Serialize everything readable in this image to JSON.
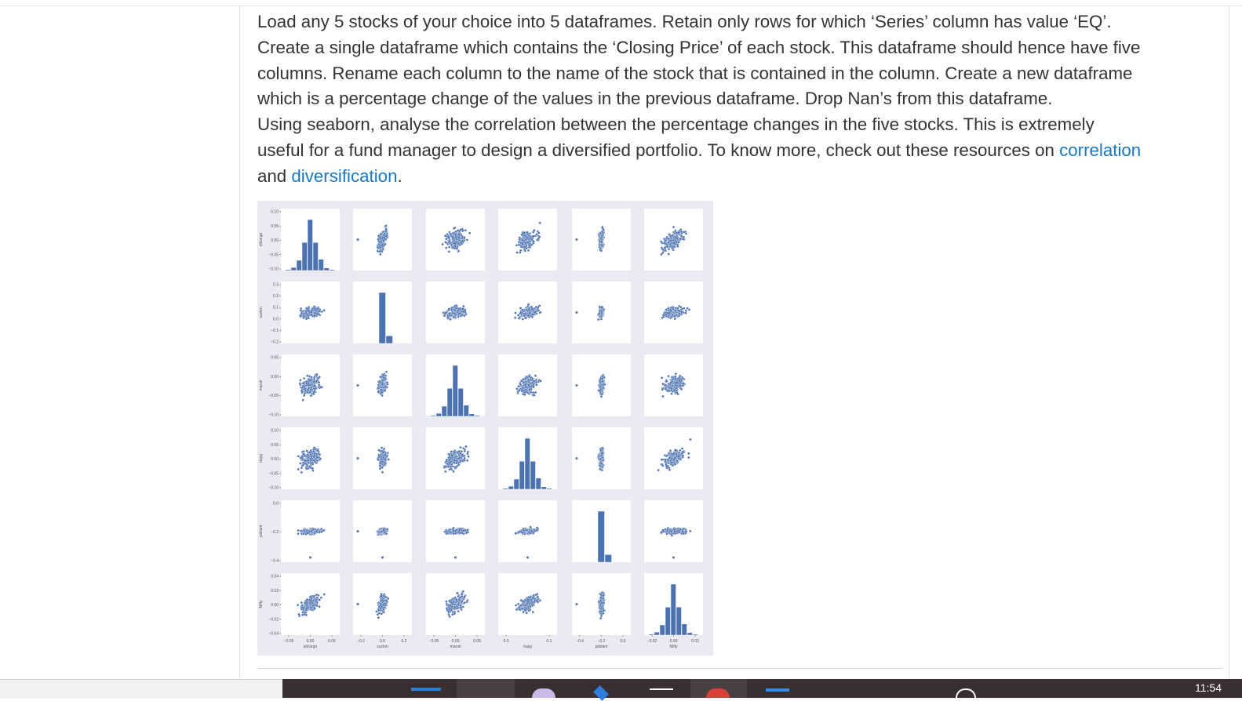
{
  "paragraph": {
    "line1": "Load any 5 stocks of your choice into 5 dataframes. Retain only rows for which ‘Series’ column has value ‘EQ’.",
    "line2": "Create a single dataframe which contains the ‘Closing Price’ of each stock. This dataframe should hence have five",
    "line3": "columns. Rename each column to the name of the stock that is contained in the column. Create a new dataframe",
    "line4": "which is a percentage change of the values in the previous dataframe. Drop Nan’s from this dataframe.",
    "line5": "Using seaborn, analyse the correlation between the percentage changes in the five stocks. This is extremely",
    "line6_pre": "useful for a fund manager to design a diversified portfolio. To know more, check out these resources on ",
    "link_correlation": "correlation",
    "line7_pre": "and ",
    "link_diversification": "diversification",
    "line7_post": "."
  },
  "colors": {
    "text": "#333333",
    "link": "#1a78c2",
    "plot_fill": "#4c72b0",
    "figure_bg": "#eaeaf2",
    "taskbar": "#3a2f30"
  },
  "chart_data": {
    "type": "scatter",
    "variables": [
      "allcargo",
      "suzlon",
      "maruti",
      "bajaj",
      "jubilant",
      "Nifty"
    ],
    "diagonal": "histogram",
    "col_labels": [
      "allcargo",
      "suzlon",
      "maruti",
      "bajaj",
      "jubilant",
      "Nifty"
    ],
    "row_labels": [
      "allcargo",
      "suzlon",
      "maruti",
      "bajaj",
      "jubilant",
      "Nifty"
    ],
    "y_ticks": [
      [
        "0.10",
        "0.05",
        "0.00",
        "−0.05",
        "−0.10"
      ],
      [
        "0.3",
        "0.2",
        "0.1",
        "0.0",
        "−0.1",
        "−0.2"
      ],
      [
        "0.05",
        "0.00",
        "−0.05",
        "−0.10"
      ],
      [
        "0.10",
        "0.05",
        "0.00",
        "−0.05",
        "−0.10"
      ],
      [
        "0.0",
        "−0.2",
        "−0.4"
      ],
      [
        "0.04",
        "0.02",
        "0.00",
        "−0.02",
        "−0.04"
      ]
    ],
    "x_ticks": [
      [
        "−0.05",
        "0.00",
        "0.05"
      ],
      [
        "−0.2",
        "0.0",
        "0.2"
      ],
      [
        "−0.05",
        "0.00",
        "0.05"
      ],
      [
        "0.0",
        "0.1"
      ],
      [
        "−0.4",
        "−0.2",
        "0.0"
      ],
      [
        "−0.02",
        "0.00",
        "0.02"
      ]
    ],
    "grid": false
  },
  "taskbar": {
    "clock": "11:54"
  }
}
